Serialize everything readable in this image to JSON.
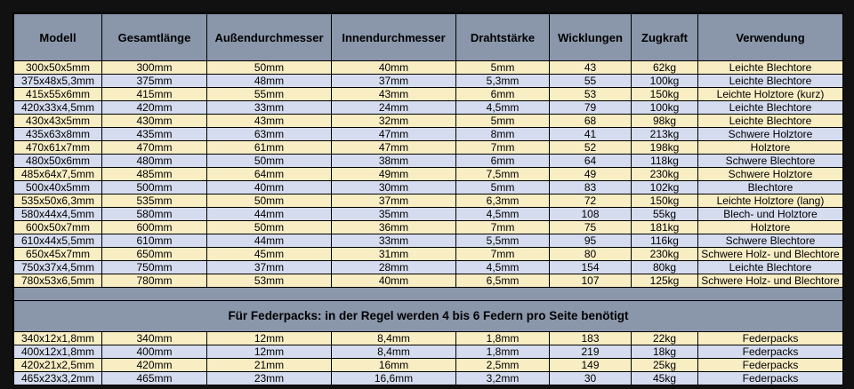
{
  "headers": [
    "Modell",
    "Gesamtlänge",
    "Außendurchmesser",
    "Innendurchmesser",
    "Drahtstärke",
    "Wicklungen",
    "Zugkraft",
    "Verwendung"
  ],
  "rows": [
    [
      "300x50x5mm",
      "300mm",
      "50mm",
      "40mm",
      "5mm",
      "43",
      "62kg",
      "Leichte Blechtore"
    ],
    [
      "375x48x5,3mm",
      "375mm",
      "48mm",
      "37mm",
      "5,3mm",
      "55",
      "100kg",
      "Leichte Blechtore"
    ],
    [
      "415x55x6mm",
      "415mm",
      "55mm",
      "43mm",
      "6mm",
      "53",
      "150kg",
      "Leichte Holztore (kurz)"
    ],
    [
      "420x33x4,5mm",
      "420mm",
      "33mm",
      "24mm",
      "4,5mm",
      "79",
      "100kg",
      "Leichte Blechtore"
    ],
    [
      "430x43x5mm",
      "430mm",
      "43mm",
      "32mm",
      "5mm",
      "68",
      "98kg",
      "Leichte Blechtore"
    ],
    [
      "435x63x8mm",
      "435mm",
      "63mm",
      "47mm",
      "8mm",
      "41",
      "213kg",
      "Schwere Holztore"
    ],
    [
      "470x61x7mm",
      "470mm",
      "61mm",
      "47mm",
      "7mm",
      "52",
      "198kg",
      "Holztore"
    ],
    [
      "480x50x6mm",
      "480mm",
      "50mm",
      "38mm",
      "6mm",
      "64",
      "118kg",
      "Schwere Blechtore"
    ],
    [
      "485x64x7,5mm",
      "485mm",
      "64mm",
      "49mm",
      "7,5mm",
      "49",
      "230kg",
      "Schwere Holztore"
    ],
    [
      "500x40x5mm",
      "500mm",
      "40mm",
      "30mm",
      "5mm",
      "83",
      "102kg",
      "Blechtore"
    ],
    [
      "535x50x6,3mm",
      "535mm",
      "50mm",
      "37mm",
      "6,3mm",
      "72",
      "150kg",
      "Leichte Holztore (lang)"
    ],
    [
      "580x44x4,5mm",
      "580mm",
      "44mm",
      "35mm",
      "4,5mm",
      "108",
      "55kg",
      "Blech- und Holztore"
    ],
    [
      "600x50x7mm",
      "600mm",
      "50mm",
      "36mm",
      "7mm",
      "75",
      "181kg",
      "Holztore"
    ],
    [
      "610x44x5,5mm",
      "610mm",
      "44mm",
      "33mm",
      "5,5mm",
      "95",
      "116kg",
      "Schwere Blechtore"
    ],
    [
      "650x45x7mm",
      "650mm",
      "45mm",
      "31mm",
      "7mm",
      "80",
      "230kg",
      "Schwere Holz- und Blechtore"
    ],
    [
      "750x37x4,5mm",
      "750mm",
      "37mm",
      "28mm",
      "4,5mm",
      "154",
      "80kg",
      "Leichte Blechtore"
    ],
    [
      "780x53x6,5mm",
      "780mm",
      "53mm",
      "40mm",
      "6,5mm",
      "107",
      "125kg",
      "Schwere Holz- und Blechtore"
    ]
  ],
  "note": "Für Federpacks: in der Regel werden 4 bis 6 Federn pro Seite benötigt",
  "pack_rows": [
    [
      "340x12x1,8mm",
      "340mm",
      "12mm",
      "8,4mm",
      "1,8mm",
      "183",
      "22kg",
      "Federpacks"
    ],
    [
      "400x12x1,8mm",
      "400mm",
      "12mm",
      "8,4mm",
      "1,8mm",
      "219",
      "18kg",
      "Federpacks"
    ],
    [
      "420x21x2,5mm",
      "420mm",
      "21mm",
      "16mm",
      "2,5mm",
      "149",
      "25kg",
      "Federpacks"
    ],
    [
      "465x23x3,2mm",
      "465mm",
      "23mm",
      "16,6mm",
      "3,2mm",
      "30",
      "45kg",
      "Federpacks"
    ]
  ]
}
